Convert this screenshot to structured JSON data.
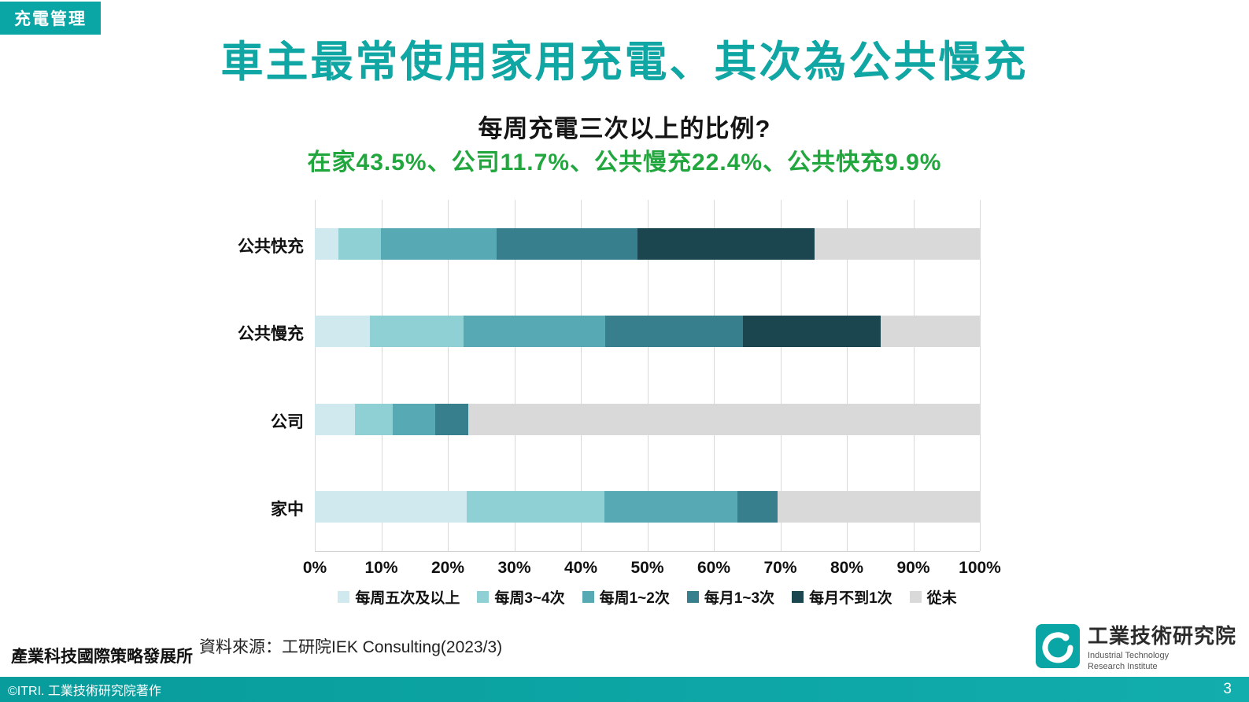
{
  "badge": {
    "label": "充電管理"
  },
  "header": {
    "title": "車主最常使用家用充電、其次為公共慢充",
    "subtitle": "每周充電三次以上的比例?",
    "highlight": "在家43.5%、公司11.7%、公共慢充22.4%、公共快充9.9%"
  },
  "chart_data": {
    "type": "bar",
    "orientation": "horizontal",
    "stacked": true,
    "xlim": [
      0,
      100
    ],
    "grid": true,
    "legend_position": "bottom",
    "x_ticks": [
      "0%",
      "10%",
      "20%",
      "30%",
      "40%",
      "50%",
      "60%",
      "70%",
      "80%",
      "90%",
      "100%"
    ],
    "categories": [
      "公共快充",
      "公共慢充",
      "公司",
      "家中"
    ],
    "series": [
      {
        "name": "每周五次及以上",
        "color": "#cfe9ee",
        "values": [
          3.5,
          8.3,
          6.0,
          22.8
        ]
      },
      {
        "name": "每周3~4次",
        "color": "#8fd0d5",
        "values": [
          6.4,
          14.1,
          5.7,
          20.7
        ]
      },
      {
        "name": "每周1~2次",
        "color": "#57a9b3",
        "values": [
          17.4,
          21.3,
          6.4,
          20.1
        ]
      },
      {
        "name": "每月1~3次",
        "color": "#377f8d",
        "values": [
          21.2,
          20.7,
          5.0,
          6.0
        ]
      },
      {
        "name": "每月不到1次",
        "color": "#1b4650",
        "values": [
          26.6,
          20.7,
          0,
          0
        ]
      },
      {
        "name": "從未",
        "color": "#d9d9d9",
        "values": [
          24.9,
          14.9,
          76.9,
          30.4
        ]
      }
    ]
  },
  "footer": {
    "org": "產業科技國際策略發展所",
    "source": "資料來源：工研院IEK Consulting(2023/3)",
    "logo_zh": "工業技術研究院",
    "logo_en1": "Industrial Technology",
    "logo_en2": "Research Institute",
    "copyright": "©ITRI. 工業技術研究院著作",
    "page": "3"
  },
  "colors": {
    "accent_teal": "#0aa5a5",
    "title_teal": "#10a6a3",
    "highlight_green": "#22a63e",
    "grid": "#d9d9d9"
  }
}
